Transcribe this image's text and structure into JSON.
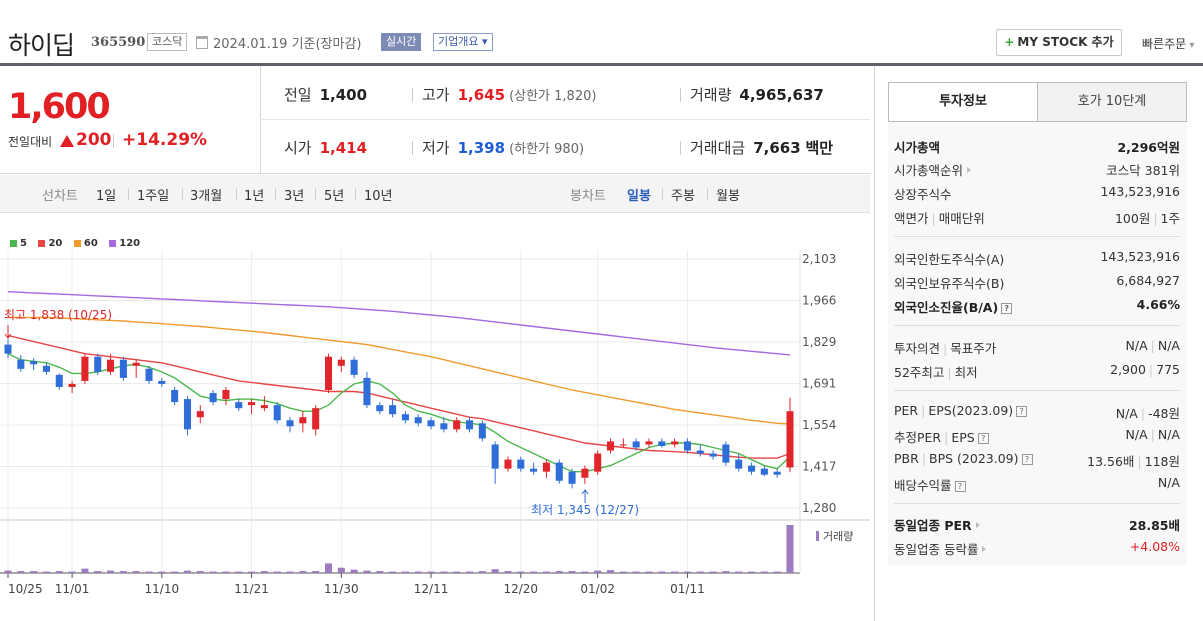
{
  "header": {
    "title": "하이딥",
    "code": "365590",
    "market": "코스닥",
    "date": "2024.01.19  기준(장마감)",
    "realtime": "실시간",
    "corp_info": "기업개요",
    "mystock": "MY STOCK 추가",
    "quick_order": "빠른주문"
  },
  "price": {
    "now": "1,600",
    "diff_label": "전일대비",
    "diff_value": "200",
    "diff_pct": "+14.29%",
    "quotes": {
      "prev_label": "전일",
      "prev": "1,400",
      "high_label": "고가",
      "high": "1,645",
      "upper_limit": "(상한가 1,820)",
      "volume_label": "거래량",
      "volume": "4,965,637",
      "open_label": "시가",
      "open": "1,414",
      "low_label": "저가",
      "low": "1,398",
      "lower_limit": "(하한가 980)",
      "amount_label": "거래대금",
      "amount": "7,663",
      "amount_unit": "백만"
    }
  },
  "period_bar": {
    "range_label": "선차트",
    "ranges": [
      "1일",
      "1주일",
      "3개월",
      "1년",
      "3년",
      "5년",
      "10년"
    ],
    "candle_label": "봉차트",
    "candles": [
      "일봉",
      "주봉",
      "월봉"
    ],
    "active_candle": "일봉"
  },
  "chart_data": {
    "type": "candlestick",
    "legend": [
      {
        "name": "5",
        "color": "#4cb84c"
      },
      {
        "name": "20",
        "color": "#e84545"
      },
      {
        "name": "60",
        "color": "#f29a2e"
      },
      {
        "name": "120",
        "color": "#a56ae0"
      }
    ],
    "y_ticks": [
      "2,103",
      "1,966",
      "1,829",
      "1,691",
      "1,554",
      "1,417",
      "1,280"
    ],
    "ylim": [
      1280,
      2103
    ],
    "x_ticks": [
      "10/25",
      "11/01",
      "11/10",
      "11/21",
      "11/30",
      "12/11",
      "12/20",
      "01/02",
      "01/11"
    ],
    "annotations": {
      "high": "최고 1,838 (10/25)",
      "low": "최저 1,345 (12/27)"
    },
    "volume_label": "거래량",
    "candles": [
      {
        "o": 1820,
        "h": 1838,
        "l": 1775,
        "c": 1790
      },
      {
        "o": 1770,
        "h": 1785,
        "l": 1730,
        "c": 1740
      },
      {
        "o": 1765,
        "h": 1775,
        "l": 1735,
        "c": 1755
      },
      {
        "o": 1750,
        "h": 1760,
        "l": 1720,
        "c": 1730
      },
      {
        "o": 1720,
        "h": 1725,
        "l": 1670,
        "c": 1680
      },
      {
        "o": 1680,
        "h": 1700,
        "l": 1660,
        "c": 1690
      },
      {
        "o": 1700,
        "h": 1790,
        "l": 1690,
        "c": 1780
      },
      {
        "o": 1780,
        "h": 1790,
        "l": 1720,
        "c": 1730
      },
      {
        "o": 1730,
        "h": 1790,
        "l": 1720,
        "c": 1770
      },
      {
        "o": 1770,
        "h": 1780,
        "l": 1700,
        "c": 1710
      },
      {
        "o": 1750,
        "h": 1770,
        "l": 1710,
        "c": 1760
      },
      {
        "o": 1740,
        "h": 1750,
        "l": 1690,
        "c": 1700
      },
      {
        "o": 1700,
        "h": 1710,
        "l": 1680,
        "c": 1690
      },
      {
        "o": 1670,
        "h": 1680,
        "l": 1620,
        "c": 1630
      },
      {
        "o": 1640,
        "h": 1650,
        "l": 1520,
        "c": 1540
      },
      {
        "o": 1580,
        "h": 1620,
        "l": 1560,
        "c": 1600
      },
      {
        "o": 1660,
        "h": 1670,
        "l": 1620,
        "c": 1630
      },
      {
        "o": 1640,
        "h": 1680,
        "l": 1620,
        "c": 1670
      },
      {
        "o": 1630,
        "h": 1640,
        "l": 1600,
        "c": 1610
      },
      {
        "o": 1620,
        "h": 1640,
        "l": 1590,
        "c": 1630
      },
      {
        "o": 1610,
        "h": 1650,
        "l": 1600,
        "c": 1620
      },
      {
        "o": 1620,
        "h": 1630,
        "l": 1560,
        "c": 1570
      },
      {
        "o": 1570,
        "h": 1580,
        "l": 1530,
        "c": 1550
      },
      {
        "o": 1560,
        "h": 1600,
        "l": 1530,
        "c": 1580
      },
      {
        "o": 1540,
        "h": 1620,
        "l": 1520,
        "c": 1610
      },
      {
        "o": 1670,
        "h": 1790,
        "l": 1660,
        "c": 1780
      },
      {
        "o": 1750,
        "h": 1780,
        "l": 1730,
        "c": 1770
      },
      {
        "o": 1770,
        "h": 1780,
        "l": 1710,
        "c": 1720
      },
      {
        "o": 1710,
        "h": 1730,
        "l": 1610,
        "c": 1620
      },
      {
        "o": 1620,
        "h": 1630,
        "l": 1590,
        "c": 1600
      },
      {
        "o": 1620,
        "h": 1640,
        "l": 1580,
        "c": 1590
      },
      {
        "o": 1590,
        "h": 1600,
        "l": 1560,
        "c": 1570
      },
      {
        "o": 1580,
        "h": 1590,
        "l": 1550,
        "c": 1560
      },
      {
        "o": 1570,
        "h": 1580,
        "l": 1540,
        "c": 1550
      },
      {
        "o": 1560,
        "h": 1580,
        "l": 1530,
        "c": 1540
      },
      {
        "o": 1540,
        "h": 1580,
        "l": 1530,
        "c": 1570
      },
      {
        "o": 1570,
        "h": 1580,
        "l": 1530,
        "c": 1540
      },
      {
        "o": 1560,
        "h": 1570,
        "l": 1500,
        "c": 1510
      },
      {
        "o": 1490,
        "h": 1500,
        "l": 1360,
        "c": 1410
      },
      {
        "o": 1410,
        "h": 1450,
        "l": 1400,
        "c": 1440
      },
      {
        "o": 1440,
        "h": 1450,
        "l": 1400,
        "c": 1410
      },
      {
        "o": 1410,
        "h": 1430,
        "l": 1390,
        "c": 1400
      },
      {
        "o": 1400,
        "h": 1440,
        "l": 1380,
        "c": 1430
      },
      {
        "o": 1430,
        "h": 1440,
        "l": 1360,
        "c": 1370
      },
      {
        "o": 1400,
        "h": 1410,
        "l": 1345,
        "c": 1360
      },
      {
        "o": 1380,
        "h": 1420,
        "l": 1360,
        "c": 1410
      },
      {
        "o": 1400,
        "h": 1470,
        "l": 1390,
        "c": 1460
      },
      {
        "o": 1470,
        "h": 1510,
        "l": 1460,
        "c": 1500
      },
      {
        "o": 1490,
        "h": 1510,
        "l": 1480,
        "c": 1490
      },
      {
        "o": 1500,
        "h": 1510,
        "l": 1470,
        "c": 1480
      },
      {
        "o": 1490,
        "h": 1510,
        "l": 1480,
        "c": 1500
      },
      {
        "o": 1500,
        "h": 1510,
        "l": 1480,
        "c": 1485
      },
      {
        "o": 1490,
        "h": 1510,
        "l": 1480,
        "c": 1500
      },
      {
        "o": 1500,
        "h": 1510,
        "l": 1460,
        "c": 1470
      },
      {
        "o": 1470,
        "h": 1490,
        "l": 1450,
        "c": 1460
      },
      {
        "o": 1460,
        "h": 1470,
        "l": 1440,
        "c": 1450
      },
      {
        "o": 1490,
        "h": 1500,
        "l": 1420,
        "c": 1430
      },
      {
        "o": 1440,
        "h": 1460,
        "l": 1400,
        "c": 1410
      },
      {
        "o": 1420,
        "h": 1430,
        "l": 1390,
        "c": 1400
      },
      {
        "o": 1410,
        "h": 1420,
        "l": 1385,
        "c": 1390
      },
      {
        "o": 1400,
        "h": 1410,
        "l": 1380,
        "c": 1390
      },
      {
        "o": 1414,
        "h": 1645,
        "l": 1398,
        "c": 1600
      }
    ],
    "volumes": [
      5,
      4,
      4,
      3,
      4,
      3,
      9,
      4,
      5,
      4,
      4,
      3,
      3,
      3,
      5,
      4,
      3,
      3,
      3,
      3,
      4,
      3,
      3,
      4,
      4,
      20,
      11,
      7,
      5,
      4,
      3,
      3,
      3,
      3,
      3,
      3,
      3,
      4,
      8,
      4,
      3,
      3,
      3,
      4,
      4,
      3,
      5,
      6,
      3,
      3,
      3,
      3,
      3,
      3,
      3,
      3,
      4,
      3,
      3,
      3,
      3,
      100
    ],
    "ma5": [
      1790,
      1770,
      1765,
      1760,
      1745,
      1725,
      1725,
      1730,
      1740,
      1750,
      1755,
      1745,
      1730,
      1710,
      1680,
      1650,
      1640,
      1635,
      1640,
      1640,
      1635,
      1625,
      1610,
      1600,
      1600,
      1620,
      1660,
      1690,
      1700,
      1690,
      1660,
      1620,
      1600,
      1590,
      1575,
      1565,
      1560,
      1555,
      1530,
      1500,
      1480,
      1460,
      1440,
      1420,
      1400,
      1400,
      1410,
      1420,
      1440,
      1460,
      1480,
      1490,
      1495,
      1495,
      1490,
      1480,
      1470,
      1460,
      1440,
      1420,
      1410,
      1450
    ],
    "ma20": [
      1850,
      1840,
      1830,
      1820,
      1810,
      1800,
      1790,
      1785,
      1780,
      1775,
      1770,
      1765,
      1760,
      1750,
      1740,
      1730,
      1720,
      1710,
      1700,
      1695,
      1690,
      1685,
      1680,
      1675,
      1670,
      1665,
      1665,
      1665,
      1660,
      1650,
      1640,
      1630,
      1620,
      1610,
      1600,
      1590,
      1580,
      1575,
      1565,
      1555,
      1545,
      1535,
      1525,
      1515,
      1505,
      1495,
      1490,
      1485,
      1480,
      1475,
      1470,
      1468,
      1466,
      1464,
      1460,
      1456,
      1452,
      1448,
      1445,
      1445,
      1445,
      1460
    ],
    "ma60": [
      1910,
      1910,
      1910,
      1910,
      1908,
      1906,
      1904,
      1902,
      1900,
      1898,
      1895,
      1892,
      1889,
      1886,
      1883,
      1880,
      1876,
      1872,
      1868,
      1864,
      1860,
      1855,
      1850,
      1845,
      1840,
      1835,
      1830,
      1825,
      1820,
      1812,
      1804,
      1796,
      1788,
      1780,
      1770,
      1760,
      1750,
      1740,
      1730,
      1720,
      1710,
      1700,
      1690,
      1680,
      1670,
      1662,
      1654,
      1646,
      1638,
      1630,
      1622,
      1614,
      1606,
      1600,
      1594,
      1588,
      1582,
      1576,
      1570,
      1565,
      1560,
      1558
    ],
    "ma120": [
      1995,
      1993,
      1991,
      1989,
      1987,
      1985,
      1983,
      1981,
      1979,
      1977,
      1975,
      1973,
      1971,
      1969,
      1967,
      1965,
      1963,
      1961,
      1959,
      1957,
      1955,
      1953,
      1951,
      1949,
      1947,
      1945,
      1942,
      1939,
      1936,
      1933,
      1930,
      1926,
      1922,
      1918,
      1914,
      1910,
      1905,
      1900,
      1895,
      1890,
      1885,
      1880,
      1875,
      1870,
      1865,
      1860,
      1855,
      1850,
      1845,
      1840,
      1835,
      1830,
      1825,
      1820,
      1815,
      1810,
      1806,
      1802,
      1798,
      1794,
      1790,
      1786
    ]
  },
  "side": {
    "tab_invest": "투자정보",
    "tab_orderbook": "호가 10단계",
    "rows": {
      "mcap_k": "시가총액",
      "mcap_v": "2,296억원",
      "mcap_rank_k": "시가총액순위",
      "mcap_rank_v": "코스닥 381위",
      "shares_k": "상장주식수",
      "shares_v": "143,523,916",
      "par_k": "액면가",
      "par_k2": "매매단위",
      "par_v": "100원",
      "par_v2": "1주",
      "foreign_limit_k": "외국인한도주식수(A)",
      "foreign_limit_v": "143,523,916",
      "foreign_hold_k": "외국인보유주식수(B)",
      "foreign_hold_v": "6,684,927",
      "foreign_ratio_k": "외국인소진율(B/A)",
      "foreign_ratio_v": "4.66%",
      "opinion_k": "투자의견",
      "opinion_k2": "목표주가",
      "opinion_v": "N/A",
      "opinion_v2": "N/A",
      "w52_k": "52주최고",
      "w52_k2": "최저",
      "w52_v": "2,900",
      "w52_v2": "775",
      "per_k": "PER",
      "per_k2": "EPS(2023.09)",
      "per_v": "N/A",
      "per_v2": "-48원",
      "est_k": "추정PER",
      "est_k2": "EPS",
      "est_v": "N/A",
      "est_v2": "N/A",
      "pbr_k": "PBR",
      "pbr_k2": "BPS (2023.09)",
      "pbr_v": "13.56배",
      "pbr_v2": "118원",
      "div_k": "배당수익률",
      "div_v": "N/A",
      "ind_per_k": "동일업종 PER",
      "ind_per_v": "28.85배",
      "ind_rate_k": "동일업종 등락률",
      "ind_rate_v": "+4.08%"
    }
  }
}
